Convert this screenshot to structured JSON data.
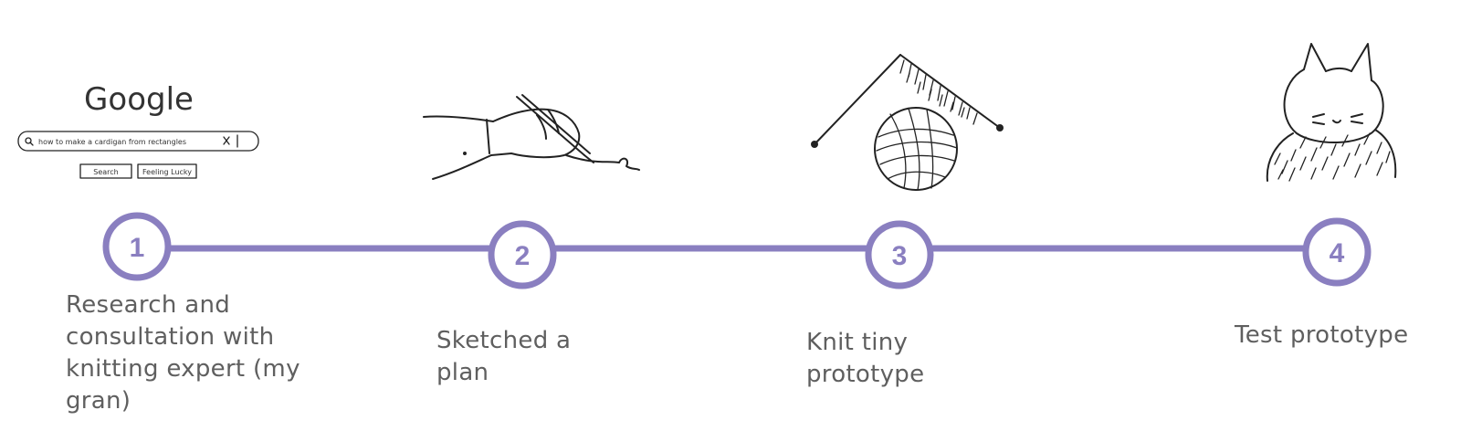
{
  "colors": {
    "accent": "#8a7fc0",
    "text": "#5f5f5f",
    "ink": "#222222"
  },
  "steps": [
    {
      "number": "1",
      "label": "Research and consultation with knitting expert (my gran)",
      "icon": "google-search-sketch-icon",
      "sketch": {
        "logo": "Google",
        "query": "how to make a cardigan from rectangles",
        "button_search": "Search",
        "button_lucky": "Feeling Lucky"
      }
    },
    {
      "number": "2",
      "label": "Sketched a plan",
      "icon": "hand-drawing-icon"
    },
    {
      "number": "3",
      "label": "Knit tiny prototype",
      "icon": "yarn-ball-knitting-needles-icon"
    },
    {
      "number": "4",
      "label": "Test prototype",
      "icon": "cat-in-sweater-icon"
    }
  ]
}
